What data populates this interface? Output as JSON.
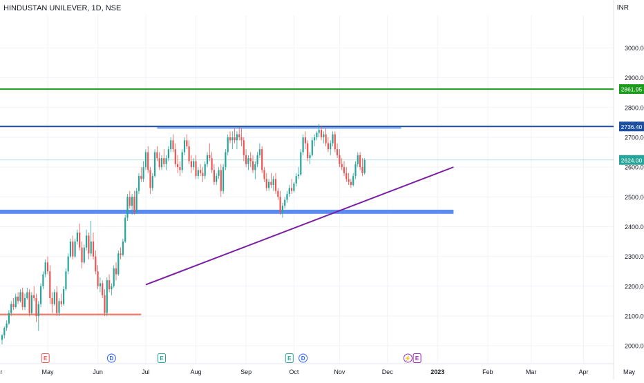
{
  "header": {
    "title": "HINDUSTAN UNILEVER, 1D, NSE",
    "currency": "INR"
  },
  "colors": {
    "up": "#26a69a",
    "down": "#ef5350",
    "green_line": "#1b9c1b",
    "blue_line": "#1e4fa3",
    "supply_zone": "#8ab4f8",
    "demand_zone": "#5b8def",
    "support_line": "#f08070",
    "trendline": "#7b1fa2",
    "last_price": "#26a69a",
    "grid": "#f0f3fa",
    "axis_text": "#131722"
  },
  "chart_data": {
    "type": "candlestick",
    "ylim": [
      1940,
      3110
    ],
    "yticks": [
      2000,
      2100,
      2200,
      2300,
      2400,
      2500,
      2600,
      2700,
      2800,
      2900,
      3000
    ],
    "ytick_labels": [
      "2000.00",
      "2100.00",
      "2200.00",
      "2300.00",
      "2400.00",
      "2500.00",
      "2600.00",
      "2700.00",
      "2800.00",
      "2900.00",
      "3000.00"
    ],
    "xticks": [
      {
        "label": "Apr",
        "bar": -2
      },
      {
        "label": "May",
        "bar": 20
      },
      {
        "label": "Jun",
        "bar": 42
      },
      {
        "label": "Jul",
        "bar": 63
      },
      {
        "label": "Aug",
        "bar": 85
      },
      {
        "label": "Sep",
        "bar": 107
      },
      {
        "label": "Oct",
        "bar": 128
      },
      {
        "label": "Nov",
        "bar": 148
      },
      {
        "label": "Dec",
        "bar": 169
      },
      {
        "label": "2023",
        "bar": 191
      },
      {
        "label": "Feb",
        "bar": 213
      },
      {
        "label": "Mar",
        "bar": 232
      },
      {
        "label": "Apr",
        "bar": 255
      },
      {
        "label": "May",
        "bar": 275
      }
    ],
    "candles": [
      [
        2020,
        2040,
        2005,
        2035
      ],
      [
        2035,
        2065,
        2025,
        2060
      ],
      [
        2060,
        2085,
        2050,
        2075
      ],
      [
        2075,
        2120,
        2070,
        2110
      ],
      [
        2110,
        2150,
        2100,
        2140
      ],
      [
        2140,
        2160,
        2120,
        2130
      ],
      [
        2130,
        2175,
        2125,
        2165
      ],
      [
        2165,
        2180,
        2140,
        2150
      ],
      [
        2150,
        2190,
        2145,
        2180
      ],
      [
        2180,
        2195,
        2120,
        2130
      ],
      [
        2130,
        2175,
        2120,
        2160
      ],
      [
        2160,
        2195,
        2155,
        2180
      ],
      [
        2180,
        2190,
        2100,
        2110
      ],
      [
        2110,
        2180,
        2105,
        2170
      ],
      [
        2170,
        2200,
        2150,
        2160
      ],
      [
        2160,
        2175,
        2080,
        2100
      ],
      [
        2100,
        2150,
        2050,
        2140
      ],
      [
        2140,
        2210,
        2130,
        2200
      ],
      [
        2200,
        2250,
        2190,
        2240
      ],
      [
        2240,
        2290,
        2230,
        2280
      ],
      [
        2280,
        2300,
        2240,
        2250
      ],
      [
        2250,
        2270,
        2140,
        2160
      ],
      [
        2160,
        2180,
        2110,
        2140
      ],
      [
        2140,
        2190,
        2135,
        2180
      ],
      [
        2180,
        2200,
        2100,
        2110
      ],
      [
        2110,
        2160,
        2100,
        2150
      ],
      [
        2150,
        2175,
        2130,
        2140
      ],
      [
        2140,
        2200,
        2135,
        2190
      ],
      [
        2190,
        2260,
        2185,
        2250
      ],
      [
        2250,
        2310,
        2240,
        2300
      ],
      [
        2300,
        2360,
        2295,
        2350
      ],
      [
        2350,
        2370,
        2290,
        2300
      ],
      [
        2300,
        2360,
        2295,
        2350
      ],
      [
        2350,
        2390,
        2340,
        2380
      ],
      [
        2380,
        2410,
        2320,
        2330
      ],
      [
        2330,
        2350,
        2260,
        2280
      ],
      [
        2280,
        2340,
        2275,
        2330
      ],
      [
        2330,
        2390,
        2320,
        2370
      ],
      [
        2370,
        2380,
        2290,
        2310
      ],
      [
        2310,
        2420,
        2300,
        2350
      ],
      [
        2350,
        2380,
        2290,
        2300
      ],
      [
        2300,
        2320,
        2240,
        2250
      ],
      [
        2250,
        2270,
        2190,
        2200
      ],
      [
        2200,
        2230,
        2180,
        2210
      ],
      [
        2210,
        2220,
        2160,
        2170
      ],
      [
        2170,
        2190,
        2100,
        2110
      ],
      [
        2110,
        2230,
        2100,
        2220
      ],
      [
        2220,
        2240,
        2180,
        2190
      ],
      [
        2190,
        2210,
        2170,
        2200
      ],
      [
        2200,
        2270,
        2195,
        2260
      ],
      [
        2260,
        2280,
        2220,
        2240
      ],
      [
        2240,
        2320,
        2235,
        2310
      ],
      [
        2310,
        2330,
        2290,
        2305
      ],
      [
        2305,
        2360,
        2300,
        2350
      ],
      [
        2350,
        2440,
        2345,
        2430
      ],
      [
        2430,
        2510,
        2420,
        2500
      ],
      [
        2500,
        2520,
        2460,
        2470
      ],
      [
        2470,
        2510,
        2440,
        2500
      ],
      [
        2500,
        2520,
        2440,
        2450
      ],
      [
        2450,
        2530,
        2445,
        2520
      ],
      [
        2520,
        2580,
        2510,
        2570
      ],
      [
        2570,
        2600,
        2550,
        2560
      ],
      [
        2560,
        2620,
        2550,
        2600
      ],
      [
        2600,
        2660,
        2590,
        2650
      ],
      [
        2650,
        2670,
        2580,
        2590
      ],
      [
        2590,
        2600,
        2510,
        2530
      ],
      [
        2530,
        2580,
        2520,
        2570
      ],
      [
        2570,
        2660,
        2565,
        2650
      ],
      [
        2650,
        2670,
        2620,
        2630
      ],
      [
        2630,
        2650,
        2590,
        2600
      ],
      [
        2600,
        2640,
        2590,
        2630
      ],
      [
        2630,
        2660,
        2600,
        2610
      ],
      [
        2610,
        2640,
        2590,
        2630
      ],
      [
        2630,
        2670,
        2620,
        2660
      ],
      [
        2660,
        2700,
        2650,
        2690
      ],
      [
        2690,
        2710,
        2650,
        2660
      ],
      [
        2660,
        2680,
        2600,
        2610
      ],
      [
        2610,
        2640,
        2580,
        2600
      ],
      [
        2600,
        2620,
        2570,
        2590
      ],
      [
        2590,
        2660,
        2580,
        2650
      ],
      [
        2650,
        2700,
        2640,
        2690
      ],
      [
        2690,
        2710,
        2660,
        2670
      ],
      [
        2670,
        2690,
        2610,
        2620
      ],
      [
        2620,
        2640,
        2580,
        2600
      ],
      [
        2600,
        2630,
        2590,
        2620
      ],
      [
        2620,
        2640,
        2560,
        2570
      ],
      [
        2570,
        2600,
        2560,
        2590
      ],
      [
        2590,
        2610,
        2570,
        2580
      ],
      [
        2580,
        2600,
        2550,
        2570
      ],
      [
        2570,
        2620,
        2560,
        2610
      ],
      [
        2610,
        2650,
        2600,
        2640
      ],
      [
        2640,
        2680,
        2620,
        2630
      ],
      [
        2630,
        2650,
        2580,
        2590
      ],
      [
        2590,
        2610,
        2540,
        2550
      ],
      [
        2550,
        2580,
        2540,
        2570
      ],
      [
        2570,
        2600,
        2560,
        2590
      ],
      [
        2590,
        2610,
        2500,
        2520
      ],
      [
        2520,
        2610,
        2510,
        2600
      ],
      [
        2600,
        2660,
        2590,
        2650
      ],
      [
        2650,
        2710,
        2640,
        2700
      ],
      [
        2700,
        2720,
        2680,
        2690
      ],
      [
        2690,
        2720,
        2660,
        2700
      ],
      [
        2700,
        2730,
        2680,
        2690
      ],
      [
        2690,
        2720,
        2660,
        2710
      ],
      [
        2710,
        2735,
        2690,
        2700
      ],
      [
        2700,
        2730,
        2670,
        2690
      ],
      [
        2690,
        2700,
        2620,
        2640
      ],
      [
        2640,
        2660,
        2600,
        2610
      ],
      [
        2610,
        2640,
        2590,
        2630
      ],
      [
        2630,
        2650,
        2600,
        2620
      ],
      [
        2620,
        2640,
        2580,
        2590
      ],
      [
        2590,
        2620,
        2560,
        2610
      ],
      [
        2610,
        2650,
        2600,
        2640
      ],
      [
        2640,
        2680,
        2630,
        2660
      ],
      [
        2660,
        2670,
        2580,
        2590
      ],
      [
        2590,
        2600,
        2550,
        2560
      ],
      [
        2560,
        2580,
        2520,
        2530
      ],
      [
        2530,
        2560,
        2520,
        2550
      ],
      [
        2550,
        2580,
        2530,
        2540
      ],
      [
        2540,
        2570,
        2520,
        2560
      ],
      [
        2560,
        2580,
        2510,
        2520
      ],
      [
        2520,
        2530,
        2490,
        2500
      ],
      [
        2500,
        2520,
        2440,
        2450
      ],
      [
        2450,
        2480,
        2430,
        2470
      ],
      [
        2470,
        2500,
        2460,
        2490
      ],
      [
        2490,
        2520,
        2480,
        2510
      ],
      [
        2510,
        2540,
        2500,
        2530
      ],
      [
        2530,
        2560,
        2510,
        2520
      ],
      [
        2520,
        2550,
        2515,
        2545
      ],
      [
        2545,
        2580,
        2535,
        2570
      ],
      [
        2570,
        2600,
        2560,
        2575
      ],
      [
        2575,
        2660,
        2570,
        2650
      ],
      [
        2650,
        2710,
        2640,
        2700
      ],
      [
        2700,
        2720,
        2660,
        2680
      ],
      [
        2680,
        2690,
        2620,
        2630
      ],
      [
        2630,
        2650,
        2610,
        2640
      ],
      [
        2640,
        2700,
        2635,
        2690
      ],
      [
        2690,
        2710,
        2670,
        2700
      ],
      [
        2700,
        2720,
        2690,
        2715
      ],
      [
        2715,
        2745,
        2700,
        2725
      ],
      [
        2725,
        2740,
        2690,
        2700
      ],
      [
        2700,
        2720,
        2680,
        2710
      ],
      [
        2710,
        2730,
        2670,
        2680
      ],
      [
        2680,
        2700,
        2650,
        2660
      ],
      [
        2660,
        2690,
        2640,
        2680
      ],
      [
        2680,
        2720,
        2670,
        2710
      ],
      [
        2710,
        2720,
        2650,
        2660
      ],
      [
        2660,
        2680,
        2630,
        2640
      ],
      [
        2640,
        2660,
        2600,
        2610
      ],
      [
        2610,
        2630,
        2590,
        2600
      ],
      [
        2600,
        2620,
        2570,
        2580
      ],
      [
        2580,
        2600,
        2550,
        2560
      ],
      [
        2560,
        2580,
        2540,
        2550
      ],
      [
        2550,
        2560,
        2530,
        2540
      ],
      [
        2540,
        2580,
        2535,
        2570
      ],
      [
        2570,
        2620,
        2560,
        2610
      ],
      [
        2610,
        2650,
        2600,
        2640
      ],
      [
        2640,
        2650,
        2590,
        2600
      ],
      [
        2600,
        2630,
        2570,
        2580
      ],
      [
        2580,
        2630,
        2575,
        2624
      ]
    ],
    "horizontal_lines": [
      {
        "price": 2861.95,
        "label": "2861.95",
        "color": "green_line"
      },
      {
        "price": 2736.4,
        "label": "2736.40",
        "color": "blue_line"
      }
    ],
    "last_price": {
      "price": 2624.0,
      "label": "2624.00"
    },
    "zones": [
      {
        "from_bar": 68,
        "to_bar": 175,
        "price": 2733,
        "color": "supply_zone"
      },
      {
        "from_bar": -3,
        "to_bar": 198,
        "price": 2450,
        "color": "demand_zone"
      }
    ],
    "support_segment": {
      "from_bar": -3,
      "to_bar": 61,
      "price": 2105
    },
    "trendline": {
      "from_bar": 63,
      "from_price": 2205,
      "to_bar": 198,
      "to_price": 2600
    },
    "events": [
      {
        "bar": 19,
        "letter": "E",
        "kind": "earnings-red"
      },
      {
        "bar": 48,
        "letter": "D",
        "kind": "dividend"
      },
      {
        "bar": 70,
        "letter": "E",
        "kind": "earnings-green"
      },
      {
        "bar": 126,
        "letter": "E",
        "kind": "earnings-green"
      },
      {
        "bar": 132,
        "letter": "D",
        "kind": "dividend"
      },
      {
        "bar": 178,
        "letter": "⚡",
        "kind": "split"
      },
      {
        "bar": 182,
        "letter": "E",
        "kind": "earnings-purple"
      }
    ]
  }
}
